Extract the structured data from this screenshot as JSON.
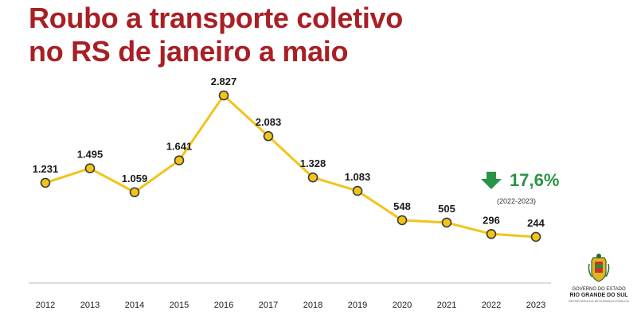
{
  "title": {
    "line1": "Roubo a transporte coletivo",
    "line2": "no RS de janeiro a maio"
  },
  "change": {
    "value": "17,6%",
    "period": "(2022-2023)",
    "direction": "down",
    "icon": "arrow-down-icon",
    "color": "#2a9446"
  },
  "logo": {
    "line1": "GOVERNO DO ESTADO",
    "line2": "RIO GRANDE DO SUL",
    "line3": "SECRETARIA DA SEGURANÇA PÚBLICA"
  },
  "colors": {
    "title": "#a81f24",
    "line": "#f0c419",
    "point_fill": "#f0c419",
    "point_stroke": "#3a3a3a",
    "axis": "#bbbbbb"
  },
  "chart_data": {
    "type": "line",
    "title": "Roubo a transporte coletivo no RS de janeiro a maio",
    "categories": [
      "2012",
      "2013",
      "2014",
      "2015",
      "2016",
      "2017",
      "2018",
      "2019",
      "2020",
      "2021",
      "2022",
      "2023"
    ],
    "values": [
      1231,
      1495,
      1059,
      1641,
      2827,
      2083,
      1328,
      1083,
      548,
      505,
      296,
      244
    ],
    "value_labels": [
      "1.231",
      "1.495",
      "1.059",
      "1.641",
      "2.827",
      "2.083",
      "1.328",
      "1.083",
      "548",
      "505",
      "296",
      "244"
    ],
    "ylim": [
      -600,
      2827
    ],
    "xlabel": "",
    "ylabel": "",
    "grid": false,
    "legend": "none"
  }
}
